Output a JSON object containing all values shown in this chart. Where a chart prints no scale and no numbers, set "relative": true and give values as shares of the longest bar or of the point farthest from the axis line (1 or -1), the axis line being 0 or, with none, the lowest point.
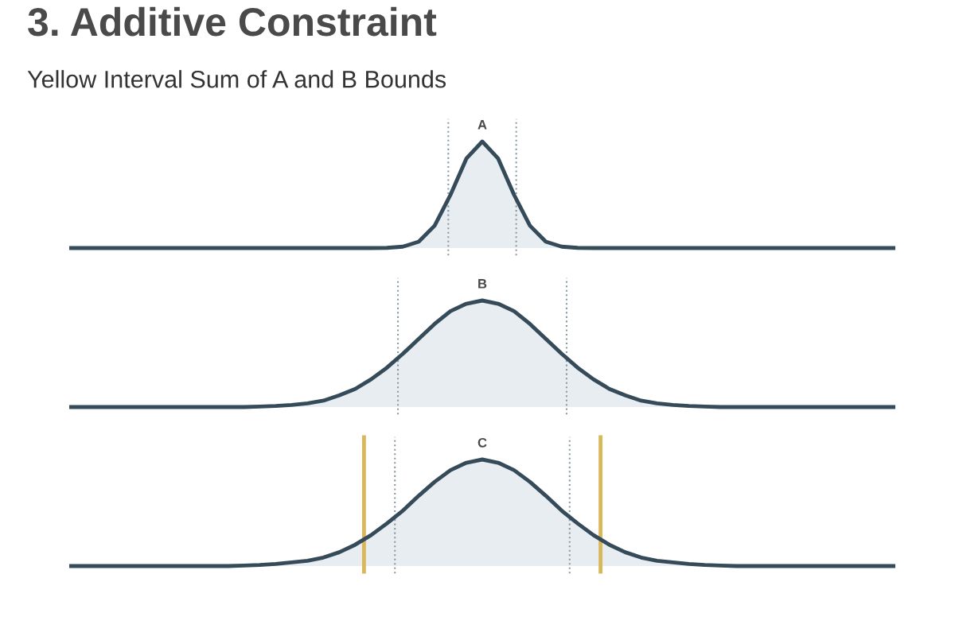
{
  "chart_data": [
    {
      "type": "other",
      "title": "3. Additive Constraint",
      "subtitle": "Yellow Interval Sum of A and B Bounds"
    },
    {
      "type": "area",
      "title": "A",
      "relative": true,
      "color": "#364b59",
      "categories": [
        null,
        null,
        null,
        null,
        null,
        null,
        null,
        null,
        null,
        null,
        null,
        null,
        null,
        null,
        null,
        null,
        null,
        null,
        null,
        null,
        null,
        null,
        null,
        null,
        null,
        null,
        null,
        null,
        null,
        null,
        null,
        null,
        null,
        null,
        null,
        null,
        null,
        null,
        null,
        null,
        null,
        null,
        null,
        null,
        null,
        null,
        null,
        null,
        null,
        null,
        null,
        null,
        null
      ],
      "values": [
        0,
        0,
        0,
        0,
        0,
        0,
        0,
        0,
        0,
        0,
        0,
        0,
        0,
        0,
        0,
        0,
        0,
        0,
        0,
        0,
        0.002,
        0.013,
        0.06,
        0.21,
        0.5,
        0.84,
        1,
        0.84,
        0.5,
        0.21,
        0.06,
        0.013,
        0.002,
        0,
        0,
        0,
        0,
        0,
        0,
        0,
        0,
        0,
        0,
        0,
        0,
        0,
        0,
        0,
        0,
        0,
        0,
        0,
        0
      ]
    },
    {
      "type": "area",
      "title": "B",
      "relative": true,
      "color": "#364b59",
      "categories": [
        null,
        null,
        null,
        null,
        null,
        null,
        null,
        null,
        null,
        null,
        null,
        null,
        null,
        null,
        null,
        null,
        null,
        null,
        null,
        null,
        null,
        null,
        null,
        null,
        null,
        null,
        null,
        null,
        null,
        null,
        null,
        null,
        null,
        null,
        null,
        null,
        null,
        null,
        null,
        null,
        null,
        null,
        null,
        null,
        null,
        null,
        null,
        null,
        null,
        null,
        null,
        null,
        null
      ],
      "values": [
        0,
        0,
        0,
        0,
        0,
        0,
        0,
        0,
        0,
        0,
        0,
        0,
        0.005,
        0.01,
        0.02,
        0.035,
        0.06,
        0.11,
        0.17,
        0.26,
        0.37,
        0.5,
        0.64,
        0.78,
        0.9,
        0.97,
        1,
        0.97,
        0.9,
        0.78,
        0.64,
        0.5,
        0.37,
        0.26,
        0.17,
        0.11,
        0.06,
        0.035,
        0.02,
        0.01,
        0.005,
        0,
        0,
        0,
        0,
        0,
        0,
        0,
        0,
        0,
        0,
        0,
        0
      ]
    },
    {
      "type": "area",
      "title": "C",
      "relative": true,
      "color": "#364b59",
      "categories": [
        null,
        null,
        null,
        null,
        null,
        null,
        null,
        null,
        null,
        null,
        null,
        null,
        null,
        null,
        null,
        null,
        null,
        null,
        null,
        null,
        null,
        null,
        null,
        null,
        null,
        null,
        null,
        null,
        null,
        null,
        null,
        null,
        null,
        null,
        null,
        null,
        null,
        null,
        null,
        null,
        null,
        null,
        null,
        null,
        null,
        null,
        null,
        null,
        null,
        null,
        null,
        null,
        null
      ],
      "values": [
        0,
        0,
        0,
        0,
        0,
        0,
        0,
        0,
        0,
        0,
        0,
        0.005,
        0.01,
        0.02,
        0.035,
        0.05,
        0.08,
        0.13,
        0.2,
        0.29,
        0.4,
        0.52,
        0.66,
        0.79,
        0.9,
        0.97,
        1,
        0.97,
        0.9,
        0.79,
        0.66,
        0.52,
        0.4,
        0.29,
        0.2,
        0.13,
        0.08,
        0.05,
        0.035,
        0.02,
        0.01,
        0.005,
        0,
        0,
        0,
        0,
        0,
        0,
        0,
        0,
        0,
        0,
        0
      ]
    }
  ]
}
